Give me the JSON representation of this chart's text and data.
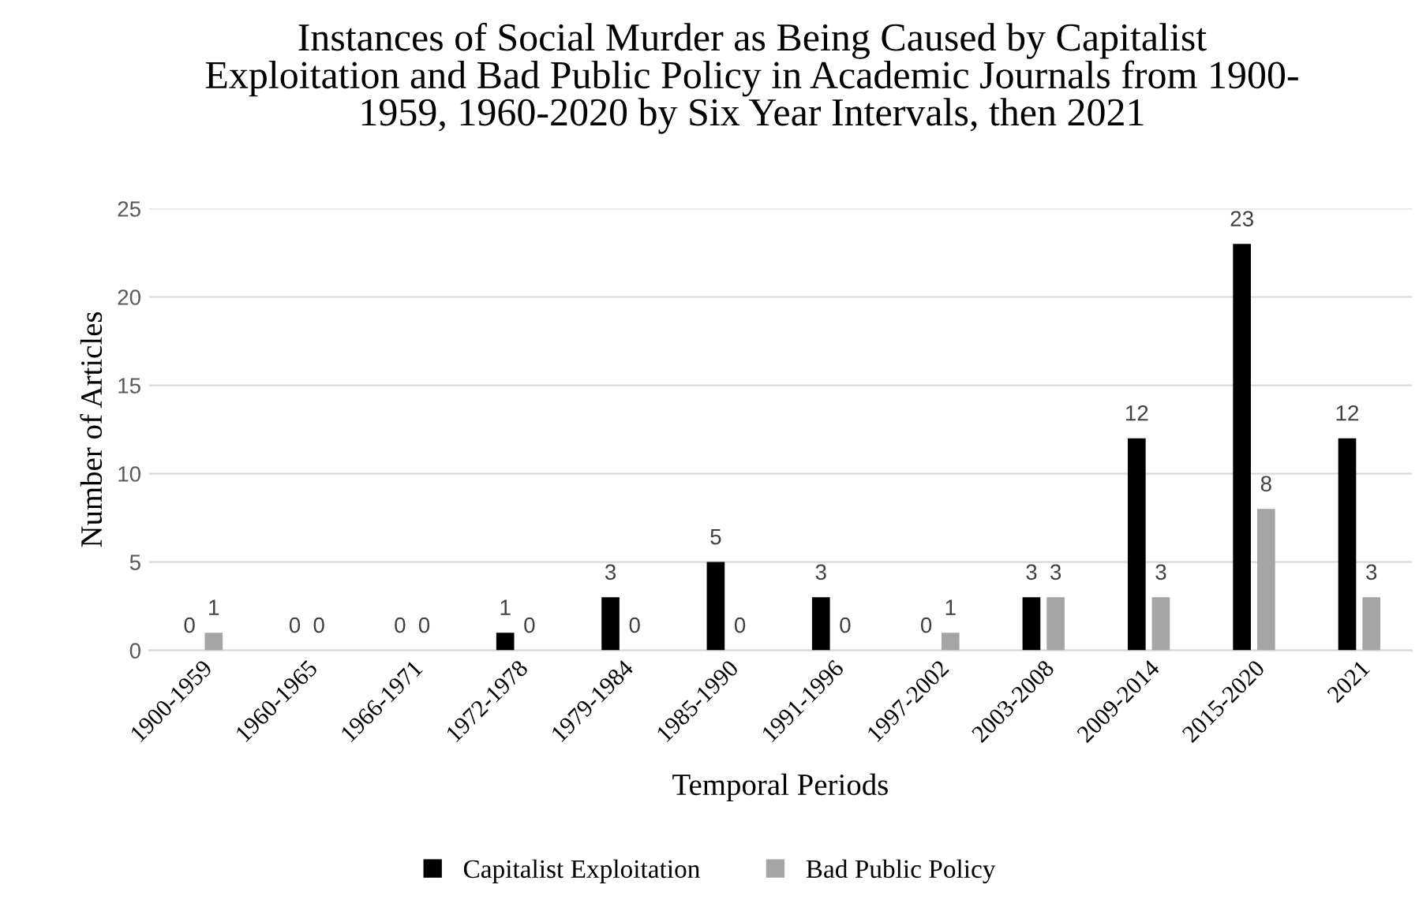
{
  "chart_data": {
    "type": "bar",
    "title": "Instances of Social Murder as Being Caused by Capitalist\nExploitation and Bad Public Policy in Academic Journals from 1900-\n1959, 1960-2020 by Six Year Intervals, then 2021",
    "xlabel": "Temporal Periods",
    "ylabel": "Number of Articles",
    "categories": [
      "1900-1959",
      "1960-1965",
      "1966-1971",
      "1972-1978",
      "1979-1984",
      "1985-1990",
      "1991-1996",
      "1997-2002",
      "2003-2008",
      "2009-2014",
      "2015-2020",
      "2021"
    ],
    "series": [
      {
        "name": "Capitalist Exploitation",
        "color": "#000000",
        "values": [
          0,
          0,
          0,
          1,
          3,
          5,
          3,
          0,
          3,
          12,
          23,
          12
        ]
      },
      {
        "name": "Bad Public Policy",
        "color": "#a5a5a5",
        "values": [
          1,
          0,
          0,
          0,
          0,
          0,
          0,
          1,
          3,
          3,
          8,
          3
        ]
      }
    ],
    "ylim": [
      0,
      25
    ],
    "yticks": [
      0,
      5,
      10,
      15,
      20,
      25
    ],
    "grid": "y",
    "legend": "bottom",
    "data_labels": true
  }
}
